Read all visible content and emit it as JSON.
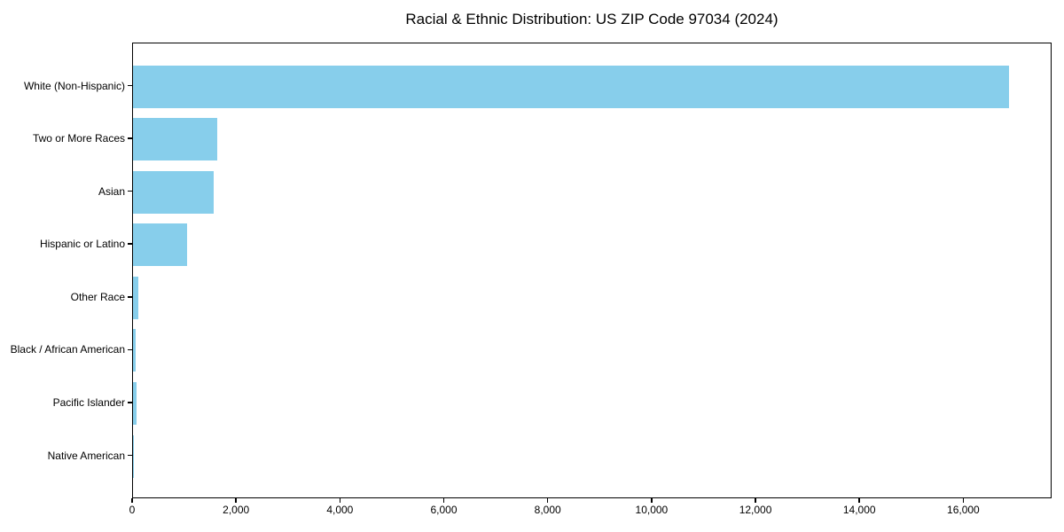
{
  "figure": {
    "background": "#ffffff",
    "frame_color": "#000000"
  },
  "chart_data": {
    "type": "bar",
    "orientation": "horizontal",
    "title": "Racial & Ethnic Distribution: US ZIP Code 97034 (2024)",
    "categories": [
      "White (Non-Hispanic)",
      "Two or More Races",
      "Asian",
      "Hispanic or Latino",
      "Other Race",
      "Black / African American",
      "Pacific Islander",
      "Native American"
    ],
    "values": [
      16870,
      1630,
      1560,
      1040,
      110,
      55,
      70,
      10
    ],
    "xlabel": "",
    "ylabel": "",
    "xlim": [
      0,
      17700
    ],
    "x_ticks": [
      0,
      2000,
      4000,
      6000,
      8000,
      10000,
      12000,
      14000,
      16000
    ],
    "x_tick_labels": [
      "0",
      "2,000",
      "4,000",
      "6,000",
      "8,000",
      "10,000",
      "12,000",
      "14,000",
      "16,000"
    ],
    "bar_color": "#87CEEB",
    "grid": false,
    "legend": "none"
  }
}
